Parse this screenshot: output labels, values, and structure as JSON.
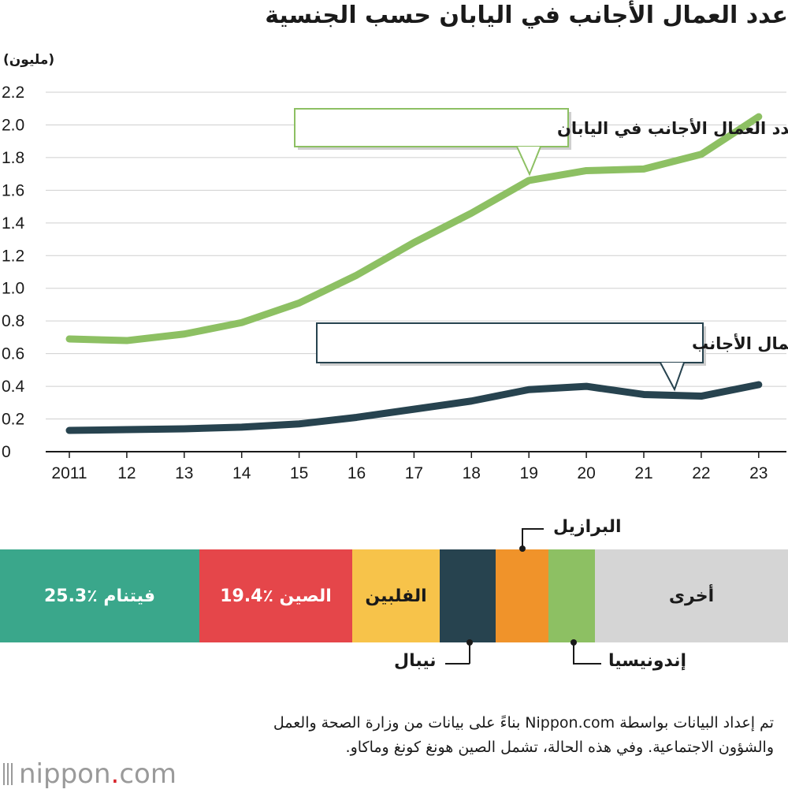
{
  "title": "عدد العمال الأجانب في اليابان حسب الجنسية",
  "unit_label": "(مليون)",
  "chart_data": [
    {
      "type": "line",
      "x": [
        "2011",
        "12",
        "13",
        "14",
        "15",
        "16",
        "17",
        "18",
        "19",
        "20",
        "21",
        "22",
        "23"
      ],
      "ylim": [
        0,
        2.2
      ],
      "yticks": [
        "0",
        "0.2",
        "0.4",
        "0.6",
        "0.8",
        "1.0",
        "1.2",
        "1.4",
        "1.6",
        "1.8",
        "2.0",
        "2.2"
      ],
      "grid": true,
      "series": [
        {
          "name": "عدد العمال الأجانب في اليابان",
          "color": "#8dc063",
          "values": [
            0.69,
            0.68,
            0.72,
            0.79,
            0.91,
            1.08,
            1.28,
            1.46,
            1.66,
            1.72,
            1.73,
            1.82,
            2.05
          ]
        },
        {
          "name": "متدربو التدريب الفني من بين العمال الأجانب",
          "color": "#27434f",
          "values": [
            0.13,
            0.135,
            0.14,
            0.15,
            0.17,
            0.21,
            0.26,
            0.31,
            0.38,
            0.4,
            0.35,
            0.34,
            0.41
          ]
        }
      ]
    },
    {
      "type": "bar",
      "orientation": "horizontal-stacked",
      "unit": "%",
      "segments": [
        {
          "name": "فيتنام",
          "label": "فيتنام ٪25.3",
          "value": 25.3,
          "color": "#3aa78b"
        },
        {
          "name": "الصين",
          "label": "الصين ٪19.4",
          "value": 19.4,
          "color": "#e5464a"
        },
        {
          "name": "الفلبين",
          "label": "الفلبين",
          "value": 11.1,
          "color": "#f7c34a"
        },
        {
          "name": "نيبال",
          "label": "نيبال",
          "value": 7.1,
          "color": "#27434f"
        },
        {
          "name": "البرازيل",
          "label": "البرازيل",
          "value": 6.7,
          "color": "#f0932a"
        },
        {
          "name": "إندونيسيا",
          "label": "إندونيسيا",
          "value": 5.9,
          "color": "#8dc063"
        },
        {
          "name": "أخرى",
          "label": "أخرى",
          "value": 24.5,
          "color": "#d5d5d5"
        }
      ]
    }
  ],
  "source_note": "تم إعداد البيانات بواسطة Nippon.com بناءً على بيانات من وزارة الصحة والعمل والشؤون الاجتماعية. وفي هذه الحالة، تشمل الصين هونغ كونغ وماكاو.",
  "logo": {
    "name": "nippon",
    "dot": ".",
    "domain": "com"
  }
}
